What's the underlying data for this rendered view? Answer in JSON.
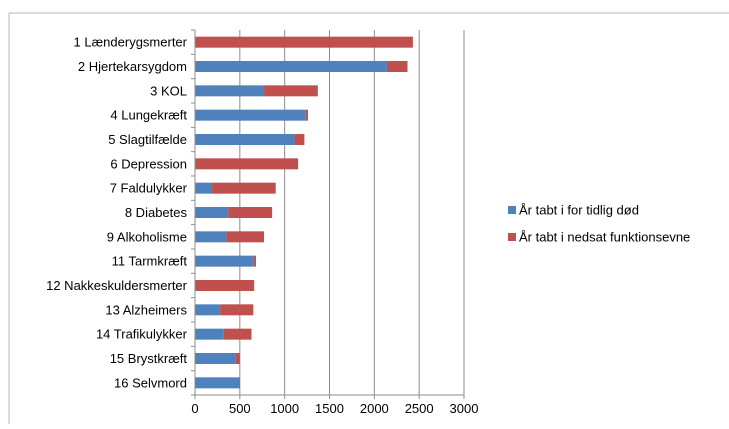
{
  "chart_data": {
    "type": "bar",
    "orientation": "horizontal",
    "stacked": true,
    "categories": [
      "1 Lænderygsmerter",
      "2 Hjertekarsygdom",
      "3 KOL",
      "4 Lungekræft",
      "5 Slagtilfælde",
      "6 Depression",
      "7 Faldulykker",
      "8 Diabetes",
      "9 Alkoholisme",
      "11 Tarmkræft",
      "12 Nakkeskuldersmerter",
      "13 Alzheimers",
      "14 Trafikulykker",
      "15 Brystkræft",
      "16 Selvmord"
    ],
    "series": [
      {
        "name": "År tabt i for tidlig død",
        "color": "#4f81bd",
        "values": [
          0,
          2140,
          770,
          1230,
          1110,
          0,
          190,
          370,
          350,
          650,
          0,
          280,
          320,
          450,
          500
        ]
      },
      {
        "name": "År tabt i nedsat funktionsevne",
        "color": "#c0504d",
        "values": [
          2430,
          230,
          600,
          30,
          110,
          1150,
          710,
          490,
          420,
          30,
          660,
          370,
          310,
          50,
          0
        ]
      }
    ],
    "xlim": [
      0,
      3000
    ],
    "xticks": [
      "0",
      "500",
      "1000",
      "1500",
      "2000",
      "2500",
      "3000"
    ],
    "grid": "vertical",
    "legend_position": "right"
  }
}
